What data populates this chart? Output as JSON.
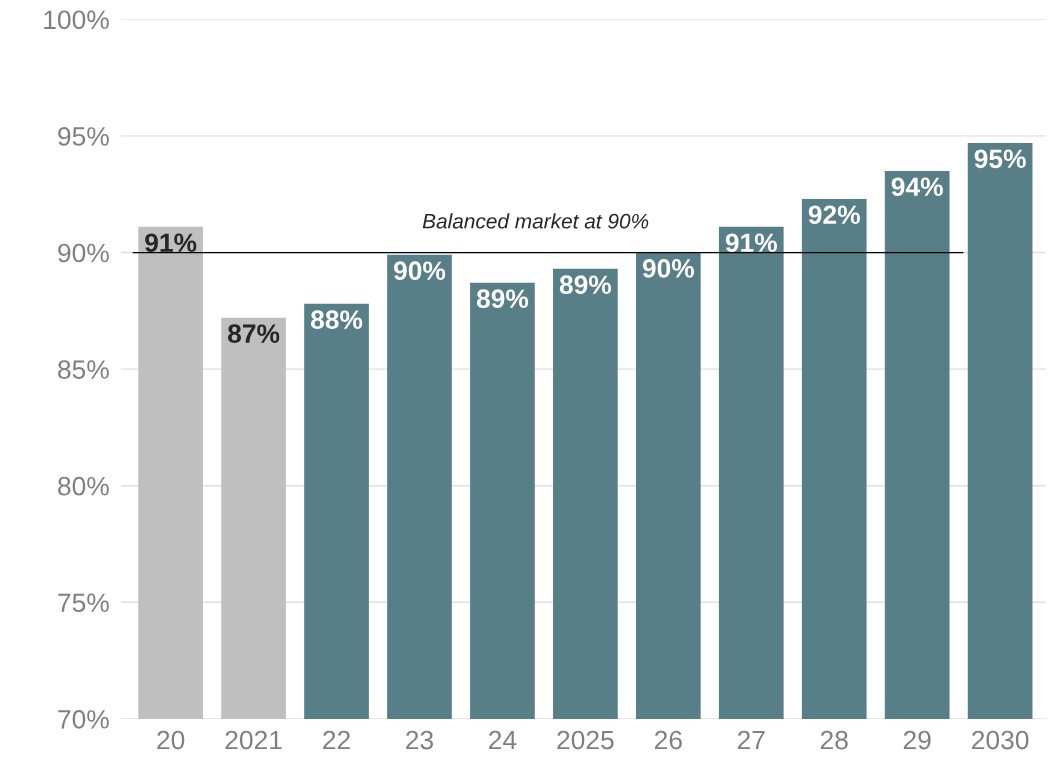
{
  "chart_data": {
    "type": "bar",
    "categories": [
      "20",
      "2021",
      "22",
      "23",
      "24",
      "2025",
      "26",
      "27",
      "28",
      "29",
      "2030"
    ],
    "values": [
      91.1,
      87.2,
      87.8,
      89.9,
      88.7,
      89.3,
      90.0,
      91.1,
      92.3,
      93.5,
      94.7
    ],
    "colors": [
      "#bfbfbf",
      "#bfbfbf",
      "#587f87",
      "#587f87",
      "#587f87",
      "#587f87",
      "#587f87",
      "#587f87",
      "#587f87",
      "#587f87",
      "#587f87"
    ],
    "value_labels": [
      "91%",
      "87%",
      "88%",
      "90%",
      "89%",
      "89%",
      "90%",
      "91%",
      "92%",
      "94%",
      "95%"
    ],
    "ylim": [
      70,
      100
    ],
    "yticks": [
      {
        "value": 70,
        "label": "70%"
      },
      {
        "value": 75,
        "label": "75%"
      },
      {
        "value": 80,
        "label": "80%"
      },
      {
        "value": 85,
        "label": "85%"
      },
      {
        "value": 90,
        "label": "90%"
      },
      {
        "value": 95,
        "label": "95%"
      },
      {
        "value": 100,
        "label": "100%"
      }
    ],
    "ref_lines": [
      {
        "axis": "y",
        "value": 90,
        "label": "Balanced market at 90%",
        "color": "#000000"
      }
    ],
    "grid": "y"
  }
}
